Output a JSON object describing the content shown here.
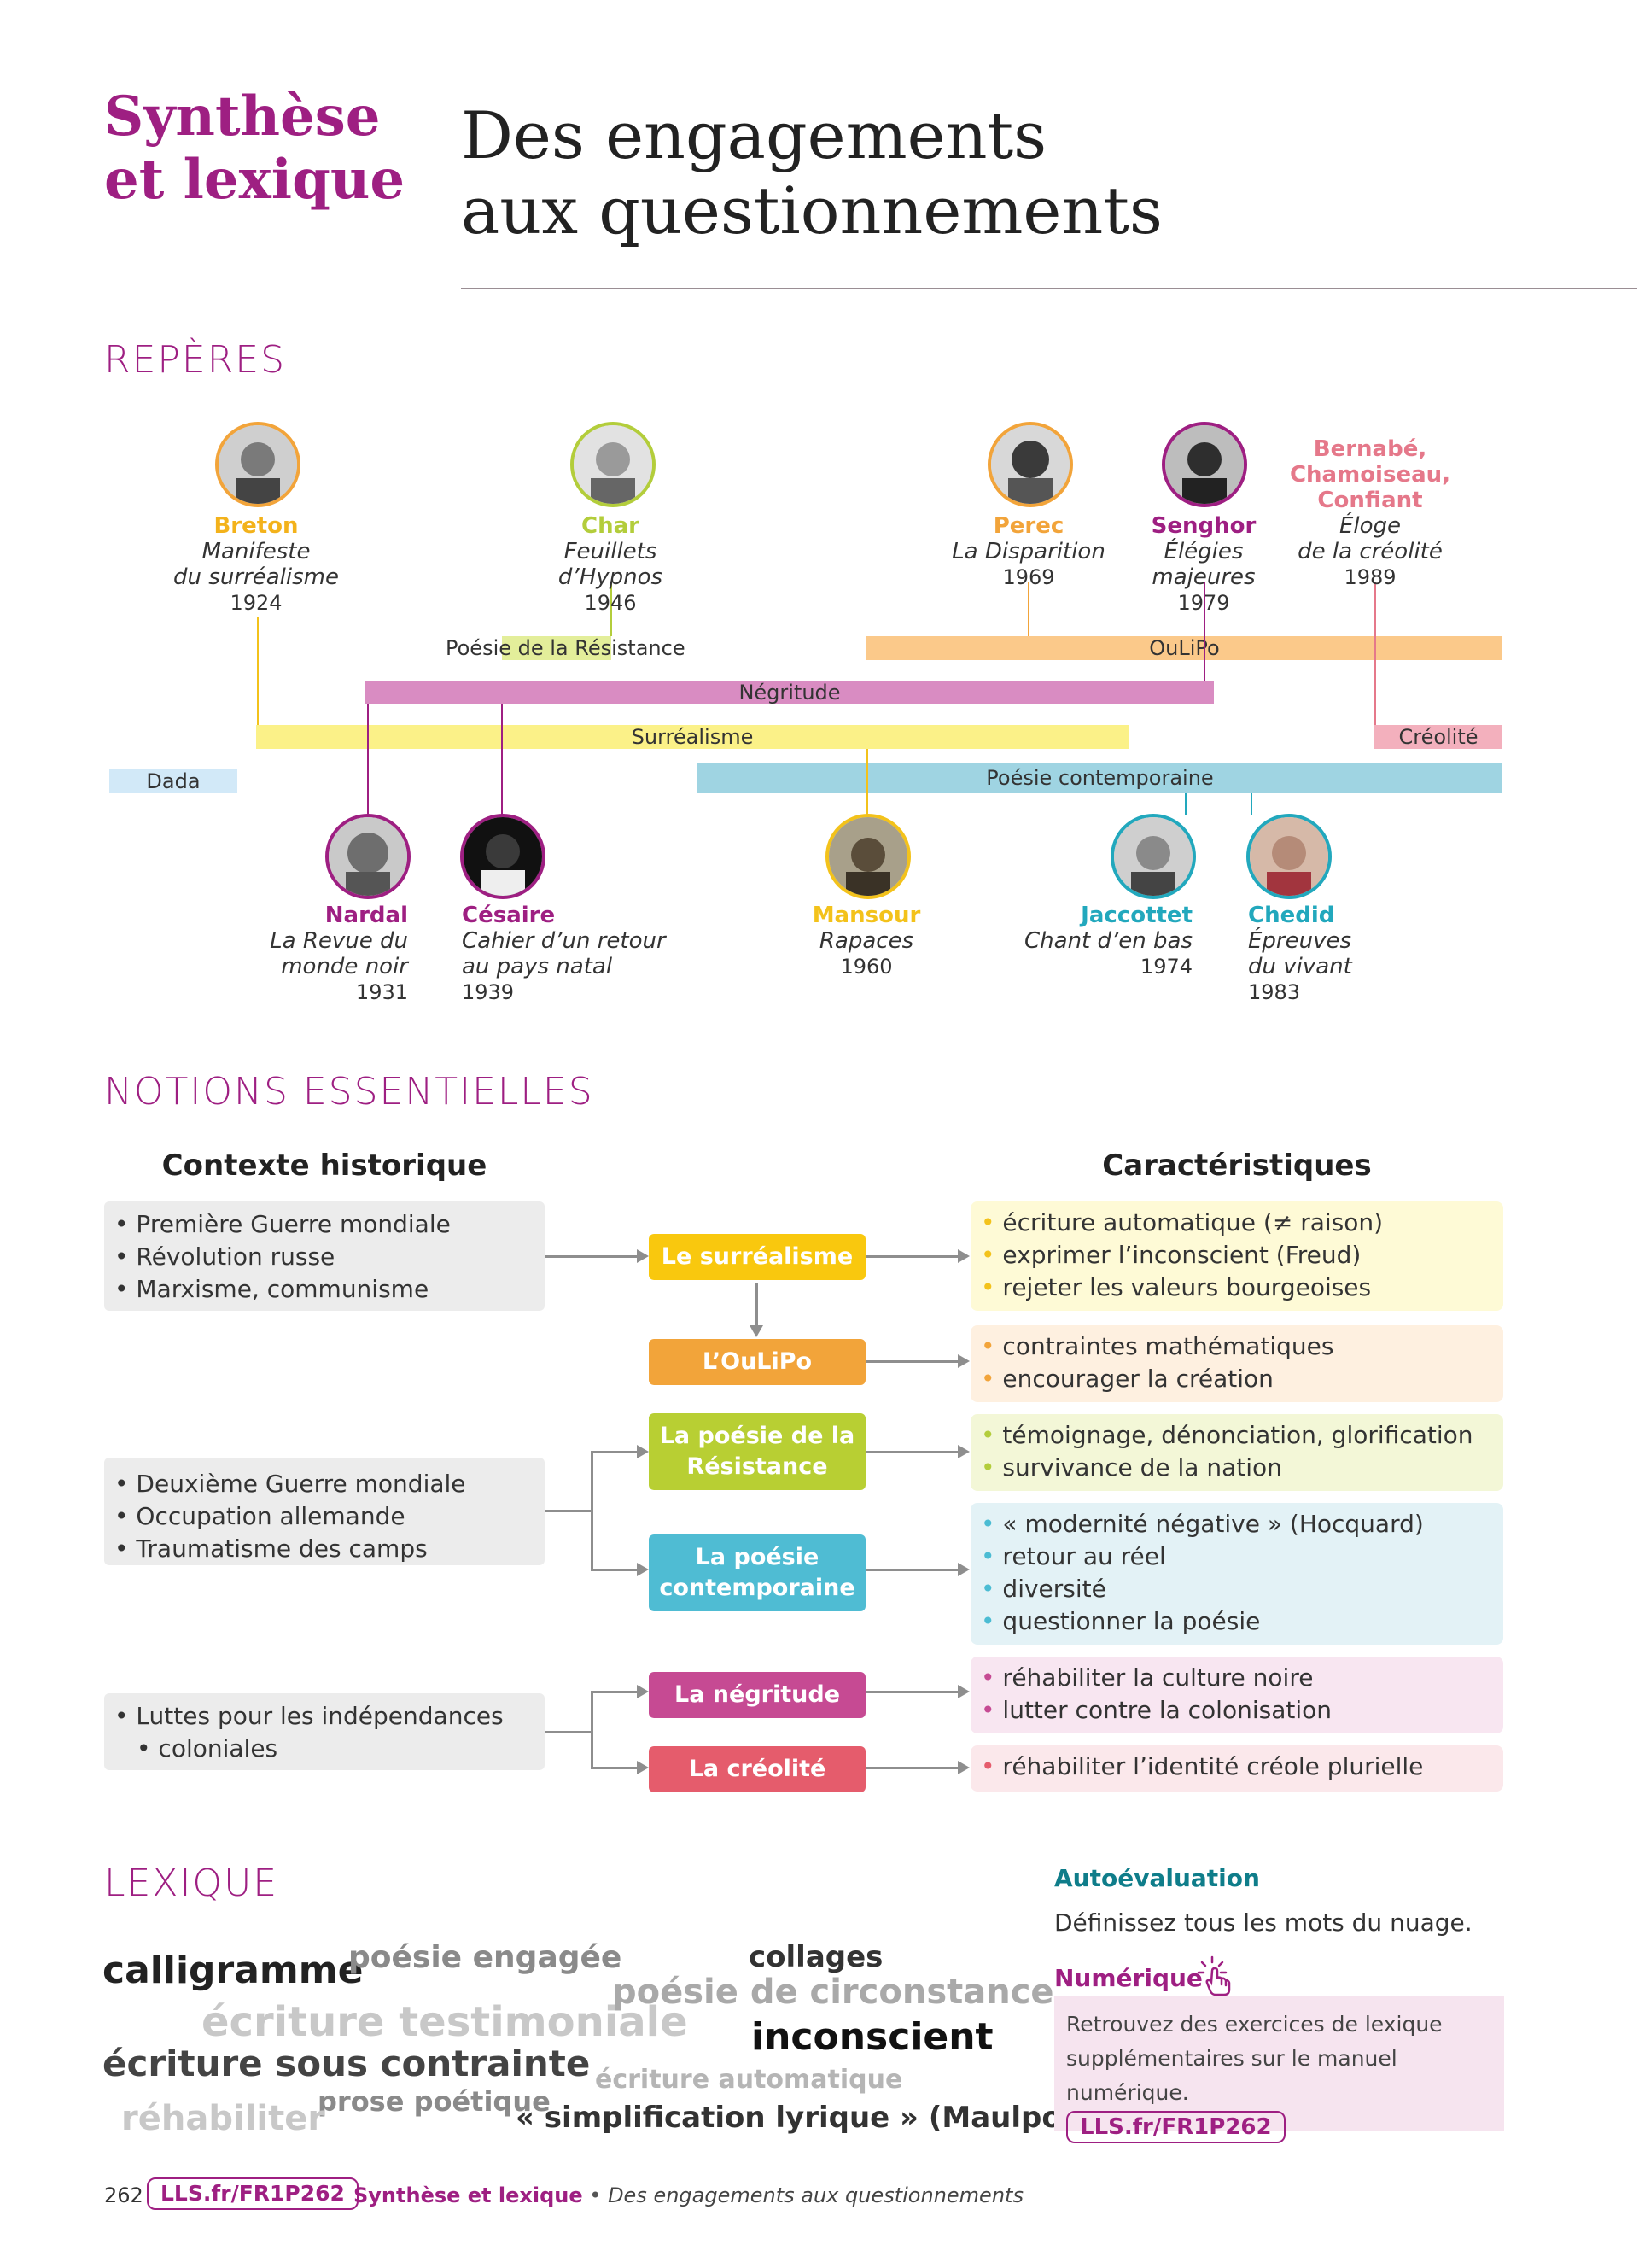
{
  "header": {
    "kicker_line1": "Synthèse",
    "kicker_line2": "et lexique",
    "title_line1": "Des engagements",
    "title_line2": "aux questionnements"
  },
  "reperes": {
    "title": "REPÈRES",
    "movements": {
      "resistance": "Poésie de la Résistance",
      "oulipo": "OuLiPo",
      "negritude": "Négritude",
      "surrealisme": "Surréalisme",
      "creolite": "Créolité",
      "dada": "Dada",
      "contemporaine": "Poésie contemporaine"
    },
    "top_people": [
      {
        "name": "Breton",
        "work": "Manifeste",
        "work2": "du surréalisme",
        "year": "1924"
      },
      {
        "name": "Char",
        "work": "Feuillets",
        "work2": "d’Hypnos",
        "year": "1946"
      },
      {
        "name": "Perec",
        "work": "La Disparition",
        "work2": "",
        "year": "1969"
      },
      {
        "name": "Senghor",
        "work": "Élégies majeures",
        "work2": "",
        "year": "1979"
      },
      {
        "name": "Bernabé,",
        "name2": "Chamoiseau,",
        "name3": "Confiant",
        "work": "Éloge",
        "work2": "de la créolité",
        "year": "1989"
      }
    ],
    "bottom_people": [
      {
        "name": "Nardal",
        "work": "La Revue du",
        "work2": "monde noir",
        "year": "1931"
      },
      {
        "name": "Césaire",
        "work": "Cahier d’un retour",
        "work2": "au pays natal",
        "year": "1939"
      },
      {
        "name": "Mansour",
        "work": "Rapaces",
        "work2": "",
        "year": "1960"
      },
      {
        "name": "Jaccottet",
        "work": "Chant d’en bas",
        "work2": "",
        "year": "1974"
      },
      {
        "name": "Chedid",
        "work": "Épreuves",
        "work2": "du vivant",
        "year": "1983"
      }
    ],
    "colors": {
      "breton": "#f2a43a",
      "char": "#b3cd3b",
      "perec": "#f2a43a",
      "senghor": "#9e1f82",
      "bernabe": "#e5788a",
      "nardal": "#9e1f82",
      "cesaire": "#9e1f82",
      "mansour": "#f3c21b",
      "jaccottet": "#22a8bd",
      "chedid": "#22a8bd"
    }
  },
  "notions": {
    "title": "NOTIONS ESSENTIELLES",
    "col_left": "Contexte historique",
    "col_right": "Caractéristiques",
    "contexts": [
      [
        "Première Guerre mondiale",
        "Révolution russe",
        "Marxisme, communisme"
      ],
      [
        "Deuxième Guerre mondiale",
        "Occupation allemande",
        "Traumatisme des camps"
      ],
      [
        "Luttes pour les indépendances",
        "coloniales"
      ]
    ],
    "items": [
      {
        "label": "Le surréalisme",
        "label2": "",
        "color": "#f9c80e",
        "features": [
          "écriture automatique (≠ raison)",
          "exprimer l’inconscient (Freud)",
          "rejeter les valeurs bourgeoises"
        ]
      },
      {
        "label": "L’OuLiPo",
        "label2": "",
        "color": "#f2a43a",
        "features": [
          "contraintes mathématiques",
          "encourager la création"
        ]
      },
      {
        "label": "La poésie de la",
        "label2": "Résistance",
        "color": "#b8cf33",
        "features": [
          "témoignage, dénonciation, glorification",
          "survivance de la nation"
        ]
      },
      {
        "label": "La poésie",
        "label2": "contemporaine",
        "color": "#4fbcd3",
        "features": [
          "« modernité négative » (Hocquard)",
          "retour au réel",
          "diversité",
          "questionner la poésie"
        ]
      },
      {
        "label": "La négritude",
        "label2": "",
        "color": "#c64a93",
        "features": [
          "réhabiliter la culture noire",
          "lutter contre la colonisation"
        ]
      },
      {
        "label": "La créolité",
        "label2": "",
        "color": "#e55c6c",
        "features": [
          "réhabiliter l’identité créole plurielle"
        ]
      }
    ]
  },
  "lexique": {
    "title": "LEXIQUE",
    "words": {
      "calligramme": "calligramme",
      "poesie_engagee": "poésie engagée",
      "collages": "collages",
      "poesie_circonstance": "poésie de circonstance",
      "ecriture_testimoniale": "écriture testimoniale",
      "ecriture_contrainte": "écriture sous contrainte",
      "inconscient": "inconscient",
      "ecriture_automatique": "écriture automatique",
      "prose_poetique": "prose poétique",
      "rehabiliter": "réhabiliter",
      "simplification": "« simplification lyrique » (Maulpoix)"
    },
    "autoeval_title": "Autoévaluation",
    "autoeval_text": "Définissez tous les mots du nuage.",
    "numerique_title": "Numérique",
    "numerique_text1": "Retrouvez des exercices de lexique",
    "numerique_text2": "supplémentaires sur le manuel numérique.",
    "link": "LLS.fr/FR1P262"
  },
  "footer": {
    "page": "262",
    "link": "LLS.fr/FR1P262",
    "section": "Synthèse et lexique",
    "sep": " • ",
    "subtitle": "Des engagements aux questionnements"
  }
}
